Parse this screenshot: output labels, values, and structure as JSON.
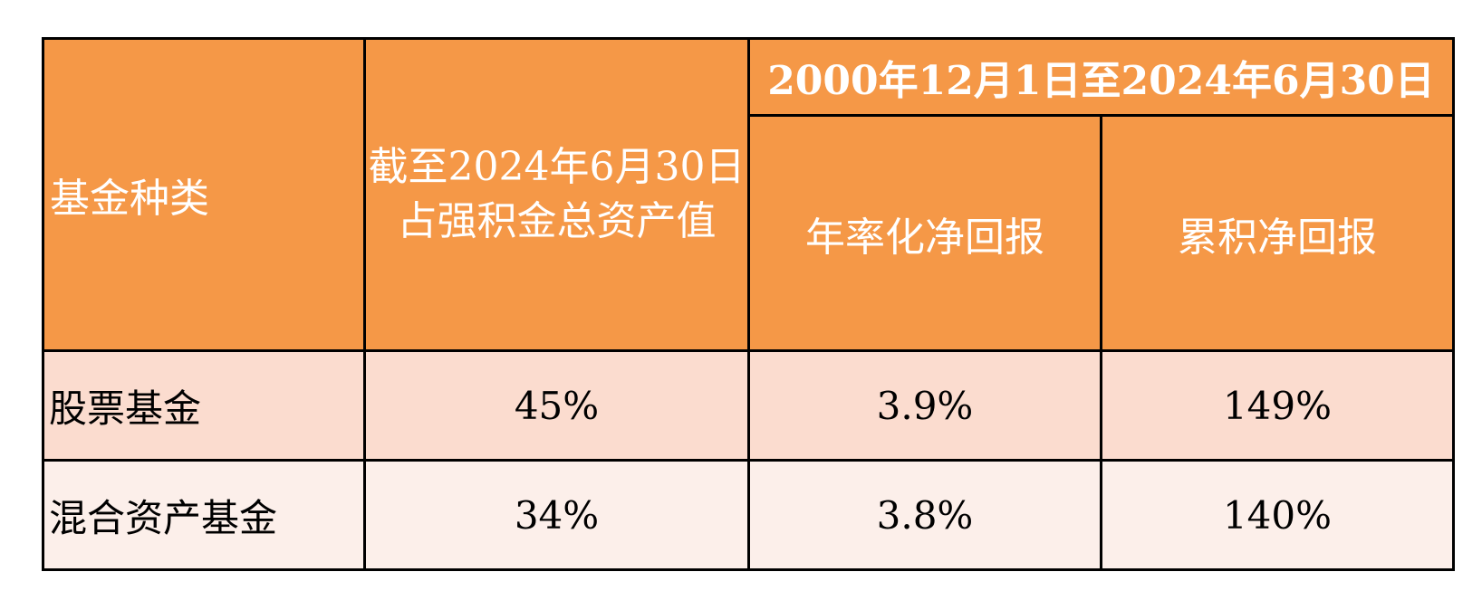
{
  "header": {
    "fund_type": "基金种类",
    "asset_share_line1": "截至2024年6月30日",
    "asset_share_line2": "占强积金总资产值",
    "period": "2000年12月1日至2024年6月30日",
    "annualized": "年率化净回报",
    "cumulative": "累积净回报"
  },
  "rows": [
    {
      "fund": "股票基金",
      "share": "45%",
      "annualized": "3.9%",
      "cumulative": "149%"
    },
    {
      "fund": "混合资产基金",
      "share": "34%",
      "annualized": "3.8%",
      "cumulative": "140%"
    }
  ],
  "colors": {
    "header_bg": "#f59847",
    "row1_bg": "#fbdccf",
    "row2_bg": "#fcefea"
  }
}
